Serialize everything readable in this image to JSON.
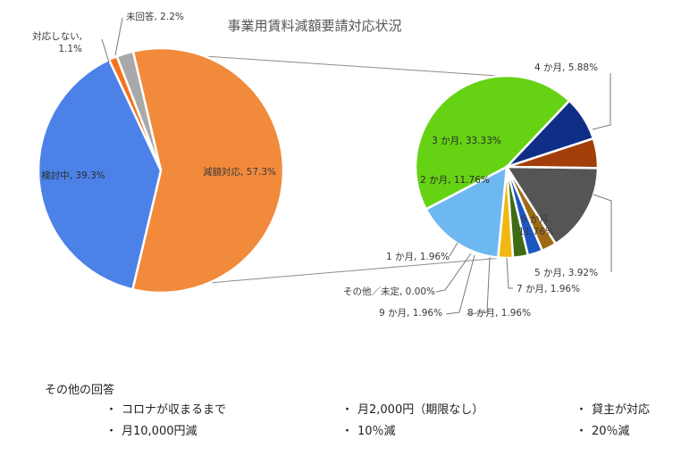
{
  "chart_data": [
    {
      "type": "pie",
      "title": "事業用賃料減額要請対応状況",
      "slices": [
        {
          "label": "減額対応",
          "value": 57.3,
          "display": "減額対応, 57.3%",
          "color": "#f28a3c"
        },
        {
          "label": "検討中",
          "value": 39.3,
          "display": "検討中, 39.3%",
          "color": "#4c82e8"
        },
        {
          "label": "対応しない",
          "value": 1.1,
          "display": "対応しない,\n1.1%",
          "color": "#f5731c"
        },
        {
          "label": "未回答",
          "value": 2.2,
          "display": "未回答, 2.2%",
          "color": "#a9a9a9"
        }
      ]
    },
    {
      "type": "pie",
      "title": "",
      "breakdown_of": "減額対応",
      "slices": [
        {
          "label": "1か月",
          "value": 1.96,
          "display": "1 か月, 1.96%",
          "color": "#f2b712"
        },
        {
          "label": "2か月",
          "value": 11.76,
          "display": "2 か月, 11.76%",
          "color": "#6eb8f2"
        },
        {
          "label": "3か月",
          "value": 33.33,
          "display": "3 か月, 33.33%",
          "color": "#66d214"
        },
        {
          "label": "4か月",
          "value": 5.88,
          "display": "4 か月, 5.88%",
          "color": "#0f2e86"
        },
        {
          "label": "5か月",
          "value": 3.92,
          "display": "5 か月, 3.92%",
          "color": "#a23e0a"
        },
        {
          "label": "6か月",
          "value": 11.76,
          "display": "6 か月,\n11.76%",
          "color": "#555555"
        },
        {
          "label": "7か月",
          "value": 1.96,
          "display": "7 か月, 1.96%",
          "color": "#9e6b14"
        },
        {
          "label": "8か月",
          "value": 1.96,
          "display": "8 か月, 1.96%",
          "color": "#1e56c2"
        },
        {
          "label": "9か月",
          "value": 1.96,
          "display": "9 か月, 1.96%",
          "color": "#3d6b16"
        },
        {
          "label": "その他／未定",
          "value": 0.0,
          "display": "その他／未定, 0.00%",
          "color": "#cccccc"
        }
      ]
    }
  ],
  "notes": {
    "heading": "その他の回答",
    "bullet": "・",
    "items": [
      "コロナが収まるまで",
      "月2,000円（期限なし）",
      "貸主が対応",
      "月10,000円減",
      "10％減",
      "20％減"
    ]
  }
}
